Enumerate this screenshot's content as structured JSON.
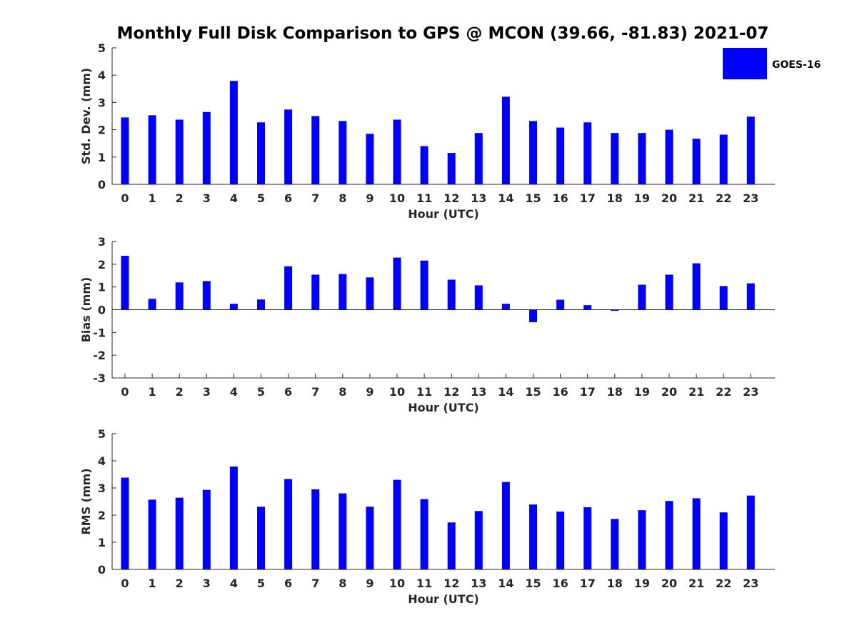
{
  "chart_data": {
    "title": "Monthly Full Disk Comparison to GPS @ MCON (39.66, -81.83) 2021-07",
    "legend": {
      "label": "GOES-16",
      "color": "#0000ff",
      "placement": "top-right"
    },
    "bar_color": "#0000ff",
    "charts": [
      {
        "type": "bar",
        "xlabel": "Hour (UTC)",
        "ylabel": "Std. Dev. (mm)",
        "ylim": [
          0,
          5
        ],
        "yticks": [
          "0",
          "1",
          "2",
          "3",
          "4",
          "5"
        ],
        "categories": [
          "0",
          "1",
          "2",
          "3",
          "4",
          "5",
          "6",
          "7",
          "8",
          "9",
          "10",
          "11",
          "12",
          "13",
          "14",
          "15",
          "16",
          "17",
          "18",
          "19",
          "20",
          "21",
          "22",
          "23"
        ],
        "series": [
          {
            "name": "GOES-16",
            "values": [
              2.45,
              2.53,
              2.37,
              2.65,
              3.79,
              2.27,
              2.74,
              2.5,
              2.32,
              1.85,
              2.37,
              1.4,
              1.15,
              1.88,
              3.21,
              2.32,
              2.08,
              2.27,
              1.88,
              1.88,
              2.0,
              1.67,
              1.82,
              2.48
            ]
          }
        ]
      },
      {
        "type": "bar",
        "xlabel": "Hour (UTC)",
        "ylabel": "Bias (mm)",
        "ylim": [
          -3,
          3
        ],
        "yticks": [
          "-3",
          "-2",
          "-1",
          "0",
          "1",
          "2",
          "3"
        ],
        "categories": [
          "0",
          "1",
          "2",
          "3",
          "4",
          "5",
          "6",
          "7",
          "8",
          "9",
          "10",
          "11",
          "12",
          "13",
          "14",
          "15",
          "16",
          "17",
          "18",
          "19",
          "20",
          "21",
          "22",
          "23"
        ],
        "series": [
          {
            "name": "GOES-16",
            "values": [
              2.37,
              0.48,
              1.2,
              1.26,
              0.26,
              0.45,
              1.91,
              1.54,
              1.57,
              1.42,
              2.29,
              2.16,
              1.32,
              1.07,
              0.26,
              -0.55,
              0.44,
              0.2,
              -0.05,
              1.1,
              1.54,
              2.04,
              1.04,
              1.16
            ]
          }
        ]
      },
      {
        "type": "bar",
        "xlabel": "Hour (UTC)",
        "ylabel": "RMS (mm)",
        "ylim": [
          0,
          5
        ],
        "yticks": [
          "0",
          "1",
          "2",
          "3",
          "4",
          "5"
        ],
        "categories": [
          "0",
          "1",
          "2",
          "3",
          "4",
          "5",
          "6",
          "7",
          "8",
          "9",
          "10",
          "11",
          "12",
          "13",
          "14",
          "15",
          "16",
          "17",
          "18",
          "19",
          "20",
          "21",
          "22",
          "23"
        ],
        "series": [
          {
            "name": "GOES-16",
            "values": [
              3.38,
              2.57,
              2.64,
              2.93,
              3.79,
              2.31,
              3.33,
              2.95,
              2.8,
              2.31,
              3.3,
              2.59,
              1.73,
              2.15,
              3.22,
              2.39,
              2.13,
              2.29,
              1.86,
              2.18,
              2.52,
              2.62,
              2.1,
              2.72
            ]
          }
        ]
      }
    ]
  }
}
